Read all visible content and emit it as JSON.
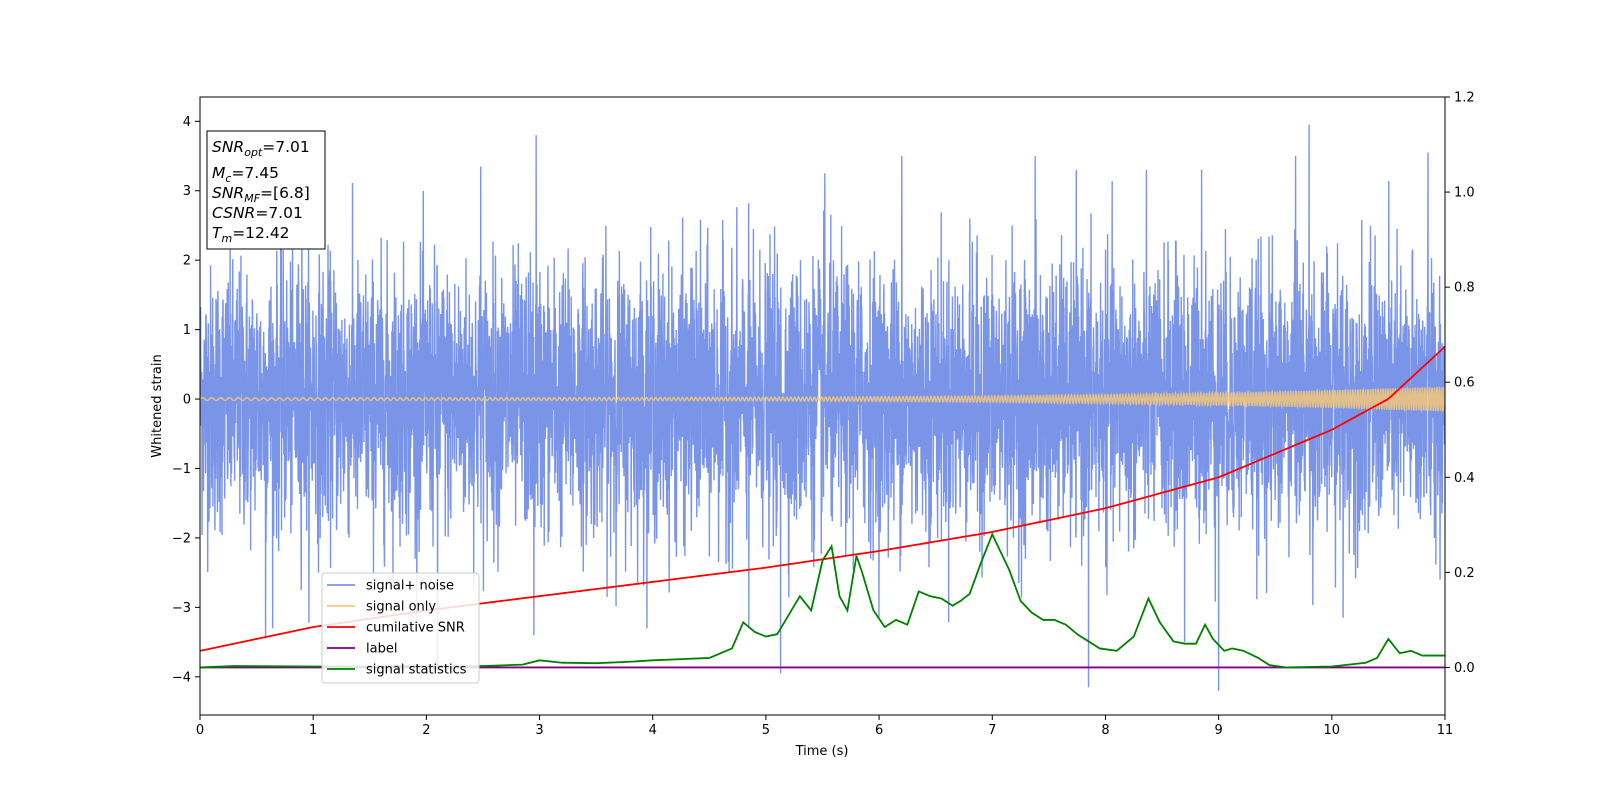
{
  "chart_data": {
    "type": "line",
    "title": "",
    "xlabel": "Time (s)",
    "ylabel": "Whitened strain",
    "xlim": [
      0,
      11
    ],
    "ylim": [
      -4.55,
      4.35
    ],
    "y2lim": [
      -0.1,
      1.2
    ],
    "xticks": [
      "0",
      "1",
      "2",
      "3",
      "4",
      "5",
      "6",
      "7",
      "8",
      "9",
      "10",
      "11"
    ],
    "yticks": [
      "−4",
      "−3",
      "−2",
      "−1",
      "0",
      "1",
      "2",
      "3",
      "4"
    ],
    "y2ticks": [
      "0.0",
      "0.2",
      "0.4",
      "0.6",
      "0.8",
      "1.0",
      "1.2"
    ],
    "grid": false,
    "legend_placement": "lower-left",
    "info_box": {
      "lines": [
        {
          "sym": "SNR",
          "sub": "opt",
          "val": "=7.01"
        },
        {
          "sym": "M",
          "sub": "c",
          "val": "=7.45"
        },
        {
          "sym": "SNR",
          "sub": "MF",
          "val": "=[6.8]"
        },
        {
          "sym": "CSNR",
          "sub": "",
          "val": "=7.01"
        },
        {
          "sym": "T",
          "sub": "m",
          "val": "=12.42"
        }
      ]
    },
    "series": [
      {
        "name": "signal+ noise",
        "axis": "left",
        "color": "#7a94e8",
        "kind": "noise",
        "std": 0.95,
        "spikes": [
          {
            "x": 2.97,
            "y": 3.8
          },
          {
            "x": 9.8,
            "y": 3.95
          },
          {
            "x": 10.85,
            "y": 3.55
          },
          {
            "x": 9.68,
            "y": 3.5
          },
          {
            "x": 6.2,
            "y": 3.5
          },
          {
            "x": 7.38,
            "y": 3.5
          },
          {
            "x": 5.52,
            "y": 3.25
          },
          {
            "x": 0.9,
            "y": 3.25
          },
          {
            "x": 2.48,
            "y": 3.35
          },
          {
            "x": 8.85,
            "y": 3.3
          },
          {
            "x": 7.85,
            "y": -4.15
          },
          {
            "x": 9.0,
            "y": -4.2
          },
          {
            "x": 5.13,
            "y": -3.95
          },
          {
            "x": 2.1,
            "y": -3.9
          },
          {
            "x": 0.58,
            "y": -3.45
          },
          {
            "x": 4.85,
            "y": -3.3
          },
          {
            "x": 8.7,
            "y": -3.5
          },
          {
            "x": 10.1,
            "y": -3.15
          },
          {
            "x": 2.95,
            "y": -3.4
          }
        ]
      },
      {
        "name": "signal only",
        "axis": "left",
        "color": "#f5c87a",
        "kind": "chirp",
        "amp_start": 0.02,
        "amp_end": 0.18
      },
      {
        "name": "cumilative SNR",
        "axis": "right",
        "color": "#ff0000",
        "kind": "line",
        "x": [
          0,
          1,
          2,
          3,
          4,
          5,
          6,
          7,
          8,
          9,
          10,
          10.5,
          11
        ],
        "y": [
          0.035,
          0.085,
          0.12,
          0.15,
          0.18,
          0.21,
          0.245,
          0.285,
          0.335,
          0.4,
          0.5,
          0.565,
          0.675
        ]
      },
      {
        "name": "label",
        "axis": "right",
        "color": "#800080",
        "kind": "line",
        "x": [
          0,
          11
        ],
        "y": [
          0,
          0
        ]
      },
      {
        "name": "signal statistics",
        "axis": "right",
        "color": "#008000",
        "kind": "line",
        "x": [
          0,
          0.3,
          1,
          2,
          2.5,
          2.85,
          3.0,
          3.2,
          3.5,
          3.8,
          4.0,
          4.2,
          4.5,
          4.7,
          4.8,
          4.9,
          5.0,
          5.1,
          5.2,
          5.3,
          5.4,
          5.5,
          5.58,
          5.65,
          5.72,
          5.8,
          5.85,
          5.95,
          6.05,
          6.15,
          6.25,
          6.35,
          6.45,
          6.55,
          6.65,
          6.72,
          6.8,
          6.9,
          7.0,
          7.05,
          7.15,
          7.25,
          7.35,
          7.45,
          7.55,
          7.65,
          7.75,
          7.85,
          7.95,
          8.1,
          8.25,
          8.38,
          8.48,
          8.6,
          8.7,
          8.8,
          8.88,
          8.95,
          9.05,
          9.12,
          9.22,
          9.35,
          9.45,
          9.6,
          10.0,
          10.3,
          10.4,
          10.5,
          10.6,
          10.7,
          10.8,
          11.0
        ],
        "y": [
          0.0,
          0.003,
          0.002,
          0.003,
          0.003,
          0.006,
          0.015,
          0.01,
          0.009,
          0.012,
          0.015,
          0.017,
          0.02,
          0.04,
          0.095,
          0.075,
          0.065,
          0.07,
          0.11,
          0.15,
          0.12,
          0.225,
          0.255,
          0.15,
          0.12,
          0.235,
          0.2,
          0.12,
          0.085,
          0.1,
          0.09,
          0.16,
          0.15,
          0.145,
          0.13,
          0.14,
          0.155,
          0.22,
          0.28,
          0.255,
          0.205,
          0.14,
          0.115,
          0.1,
          0.1,
          0.09,
          0.07,
          0.055,
          0.04,
          0.035,
          0.065,
          0.145,
          0.095,
          0.055,
          0.05,
          0.05,
          0.09,
          0.06,
          0.035,
          0.04,
          0.035,
          0.02,
          0.005,
          0.0,
          0.002,
          0.01,
          0.02,
          0.06,
          0.03,
          0.035,
          0.025,
          0.025
        ]
      }
    ]
  }
}
